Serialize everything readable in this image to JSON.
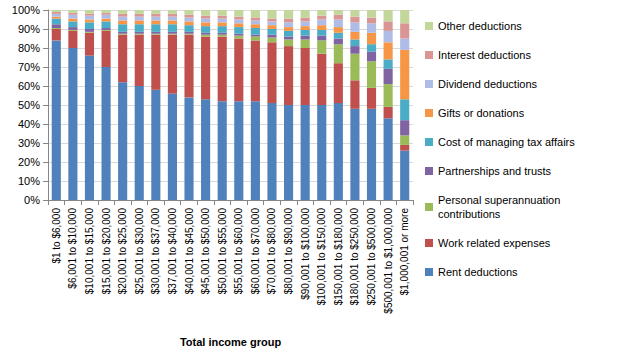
{
  "chart_data": {
    "type": "bar",
    "stacked": true,
    "grid": true,
    "legend": "right",
    "xlabel": "Total income group",
    "categories": [
      "$1 to $6,000",
      "$6,001 to $10,000",
      "$10,001 to $15,000",
      "$15,001 to $20,000",
      "$20,001 to $25,000",
      "$25,001 to $30,000",
      "$30,001 to $37,000",
      "$37,001 to $40,000",
      "$40,001 to $45,000",
      "$45,001 to $50,000",
      "$50,001 to $55,000",
      "$55,001 to $60,000",
      "$60,001 to $70,000",
      "$70,001 to $80,000",
      "$80,001 to $90,000",
      "$90,001 to $100,000",
      "$100,001 to $150,000",
      "$150,001 to $180,000",
      "$180,001 to $250,000",
      "$250,001 to $500,000",
      "$500,001 to $1,000,000",
      "$1,000,001 or more"
    ],
    "ylim": [
      0,
      100
    ],
    "yticks": [
      {
        "value": 0,
        "label": "0%"
      },
      {
        "value": 10,
        "label": "10%"
      },
      {
        "value": 20,
        "label": "20%"
      },
      {
        "value": 30,
        "label": "30%"
      },
      {
        "value": 40,
        "label": "40%"
      },
      {
        "value": 50,
        "label": "50%"
      },
      {
        "value": 60,
        "label": "60%"
      },
      {
        "value": 70,
        "label": "70%"
      },
      {
        "value": 80,
        "label": "80%"
      },
      {
        "value": 90,
        "label": "90%"
      },
      {
        "value": 100,
        "label": "100%"
      }
    ],
    "series": [
      {
        "name": "Rent deductions",
        "color": "#4F81BD",
        "values": [
          84,
          80,
          76,
          70,
          62,
          60,
          58,
          56,
          54,
          53,
          52,
          52,
          52,
          51,
          50,
          50,
          50,
          51,
          48,
          48,
          43,
          26
        ]
      },
      {
        "name": "Work related expenses",
        "color": "#C0504D",
        "values": [
          6,
          9,
          12,
          19,
          25,
          27,
          29,
          31,
          33,
          33,
          34,
          33,
          32,
          32,
          31,
          30,
          27,
          21,
          15,
          11,
          6,
          3
        ]
      },
      {
        "name": "Personal superannuation contributions",
        "color": "#9BBB59",
        "values": [
          0.5,
          0.5,
          0.5,
          0.5,
          0.5,
          0.5,
          0.5,
          0.5,
          0.5,
          1,
          1,
          1.5,
          2,
          2.5,
          3.5,
          4.5,
          7,
          10,
          14,
          14,
          12,
          5
        ]
      },
      {
        "name": "Partnerships and trusts",
        "color": "#8064A2",
        "values": [
          2,
          1.5,
          1.5,
          1,
          1,
          1,
          1,
          1,
          1,
          1,
          1,
          1,
          1,
          1.5,
          1.5,
          2,
          2.5,
          3,
          4,
          5,
          8,
          8
        ]
      },
      {
        "name": "Cost of managing tax affairs",
        "color": "#4BACC6",
        "values": [
          3,
          3,
          3.5,
          3.5,
          4,
          4,
          4,
          4,
          3.5,
          3.5,
          3.5,
          3.5,
          3.5,
          3,
          3,
          3,
          3,
          3,
          3.5,
          4,
          5,
          11
        ]
      },
      {
        "name": "Gifts or donations",
        "color": "#F79646",
        "values": [
          1,
          1.5,
          1.5,
          1.5,
          2,
          2,
          2,
          2,
          2,
          2,
          2,
          2,
          2,
          2,
          2,
          2,
          2.5,
          3,
          4,
          6,
          9,
          26
        ]
      },
      {
        "name": "Dividend deductions",
        "color": "#AFBDE6",
        "values": [
          1.5,
          2,
          2,
          2,
          2,
          2,
          2,
          2,
          2,
          2,
          2,
          2,
          2,
          2,
          2.5,
          2.5,
          3,
          4,
          5,
          5,
          6,
          6
        ]
      },
      {
        "name": "Interest deductions",
        "color": "#D99694",
        "values": [
          1,
          1,
          1,
          1,
          1.5,
          1.5,
          1.5,
          1.5,
          1.5,
          1.5,
          1.5,
          1.5,
          1.5,
          1.5,
          2,
          2,
          2,
          2.5,
          3,
          3,
          5,
          8
        ]
      },
      {
        "name": "Other deductions",
        "color": "#C3D69B",
        "values": [
          1,
          1.5,
          2,
          1.5,
          2,
          2,
          2,
          2,
          2.5,
          3,
          3,
          3.5,
          4,
          4.5,
          4.5,
          4,
          3,
          2.5,
          3.5,
          4,
          6,
          7
        ]
      }
    ]
  }
}
